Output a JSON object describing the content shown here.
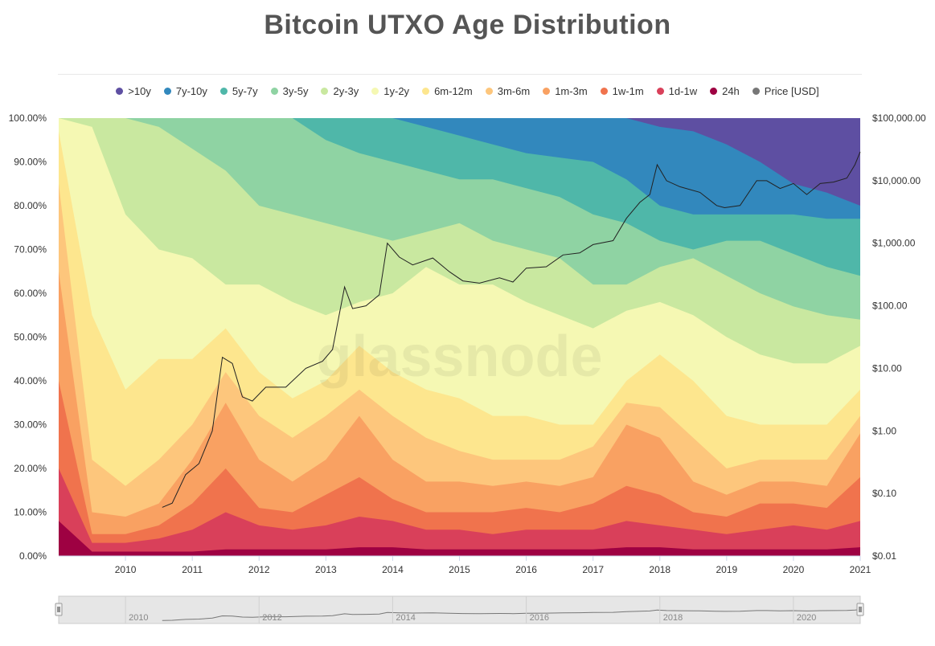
{
  "title": "Bitcoin UTXO Age Distribution",
  "watermark": "glassnode",
  "legend": [
    {
      "label": ">10y",
      "color": "#5e4fa2"
    },
    {
      "label": "7y-10y",
      "color": "#3288bd"
    },
    {
      "label": "5y-7y",
      "color": "#4fb7a9"
    },
    {
      "label": "3y-5y",
      "color": "#8fd3a3"
    },
    {
      "label": "2y-3y",
      "color": "#c9e8a0"
    },
    {
      "label": "1y-2y",
      "color": "#f5f8b3"
    },
    {
      "label": "6m-12m",
      "color": "#fde68e"
    },
    {
      "label": "3m-6m",
      "color": "#fdc67c"
    },
    {
      "label": "1m-3m",
      "color": "#f9a162"
    },
    {
      "label": "1w-1m",
      "color": "#f0734d"
    },
    {
      "label": "1d-1w",
      "color": "#d9405a"
    },
    {
      "label": "24h",
      "color": "#9e0142"
    },
    {
      "label": "Price [USD]",
      "color": "#777777"
    }
  ],
  "chart_data": {
    "type": "area",
    "stacking": "percent",
    "x": [
      2009.0,
      2009.5,
      2010.0,
      2010.5,
      2011.0,
      2011.5,
      2012.0,
      2012.5,
      2013.0,
      2013.5,
      2014.0,
      2014.5,
      2015.0,
      2015.5,
      2016.0,
      2016.5,
      2017.0,
      2017.5,
      2018.0,
      2018.5,
      2019.0,
      2019.5,
      2020.0,
      2020.5,
      2021.0
    ],
    "xlim": [
      2009.0,
      2021.0
    ],
    "x_tick_labels": [
      "2010",
      "2011",
      "2012",
      "2013",
      "2014",
      "2015",
      "2016",
      "2017",
      "2018",
      "2019",
      "2020",
      "2021"
    ],
    "y_tick_labels": [
      "0.00%",
      "10.00%",
      "20.00%",
      "30.00%",
      "40.00%",
      "50.00%",
      "60.00%",
      "70.00%",
      "80.00%",
      "90.00%",
      "100.00%"
    ],
    "ylim": [
      0,
      100
    ],
    "y2_tick_labels": [
      "$0.01",
      "$0.10",
      "$1.00",
      "$10.00",
      "$100.00",
      "$1,000.00",
      "$10,000.00",
      "$100,000.00"
    ],
    "y2_scale": "log",
    "y2lim": [
      0.01,
      100000
    ],
    "cumulative_upper_bounds": [
      {
        "name": "24h",
        "values": [
          8,
          1,
          1,
          1,
          1,
          1.5,
          1.5,
          1.5,
          1.5,
          2,
          2,
          1.5,
          1.5,
          1.5,
          1.5,
          1.5,
          1.5,
          2,
          2,
          1.5,
          1.5,
          1.5,
          1.5,
          1.5,
          2
        ]
      },
      {
        "name": "1d-1w",
        "values": [
          20,
          3,
          3,
          4,
          6,
          10,
          7,
          6,
          7,
          9,
          8,
          6,
          6,
          5,
          6,
          6,
          6,
          8,
          7,
          6,
          5,
          6,
          7,
          6,
          8
        ]
      },
      {
        "name": "1w-1m",
        "values": [
          40,
          5,
          5,
          7,
          12,
          20,
          11,
          10,
          14,
          18,
          13,
          10,
          10,
          10,
          11,
          10,
          12,
          16,
          14,
          10,
          9,
          12,
          12,
          11,
          18
        ]
      },
      {
        "name": "1m-3m",
        "values": [
          65,
          10,
          9,
          12,
          22,
          35,
          22,
          17,
          22,
          32,
          22,
          17,
          17,
          16,
          17,
          16,
          18,
          30,
          27,
          17,
          14,
          17,
          17,
          16,
          28
        ]
      },
      {
        "name": "3m-6m",
        "values": [
          85,
          22,
          16,
          22,
          30,
          42,
          32,
          27,
          32,
          38,
          32,
          27,
          24,
          22,
          22,
          22,
          25,
          35,
          34,
          27,
          20,
          22,
          22,
          22,
          32
        ]
      },
      {
        "name": "6m-12m",
        "values": [
          97,
          55,
          38,
          45,
          45,
          52,
          42,
          36,
          40,
          48,
          42,
          38,
          36,
          32,
          32,
          30,
          30,
          40,
          46,
          40,
          32,
          30,
          30,
          30,
          38
        ]
      },
      {
        "name": "1y-2y",
        "values": [
          100,
          98,
          78,
          70,
          68,
          62,
          62,
          58,
          55,
          58,
          60,
          66,
          62,
          62,
          58,
          55,
          52,
          56,
          58,
          55,
          50,
          46,
          44,
          44,
          48
        ]
      },
      {
        "name": "2y-3y",
        "values": [
          100,
          100,
          100,
          98,
          93,
          88,
          80,
          78,
          76,
          74,
          72,
          74,
          76,
          72,
          70,
          68,
          62,
          62,
          66,
          68,
          64,
          60,
          57,
          55,
          54
        ]
      },
      {
        "name": "3y-5y",
        "values": [
          100,
          100,
          100,
          100,
          100,
          100,
          100,
          100,
          95,
          92,
          90,
          88,
          86,
          86,
          84,
          82,
          78,
          76,
          72,
          70,
          72,
          72,
          69,
          66,
          64
        ]
      },
      {
        "name": "5y-7y",
        "values": [
          100,
          100,
          100,
          100,
          100,
          100,
          100,
          100,
          100,
          100,
          100,
          98,
          96,
          94,
          92,
          91,
          90,
          86,
          80,
          78,
          78,
          78,
          78,
          77,
          77
        ]
      },
      {
        "name": "7y-10y",
        "values": [
          100,
          100,
          100,
          100,
          100,
          100,
          100,
          100,
          100,
          100,
          100,
          100,
          100,
          100,
          100,
          100,
          100,
          100,
          98,
          97,
          94,
          90,
          85,
          83,
          80
        ]
      },
      {
        "name": ">10y",
        "values": [
          100,
          100,
          100,
          100,
          100,
          100,
          100,
          100,
          100,
          100,
          100,
          100,
          100,
          100,
          100,
          100,
          100,
          100,
          100,
          100,
          100,
          100,
          100,
          100,
          100
        ]
      }
    ],
    "price_series": {
      "name": "Price [USD]",
      "x": [
        2010.55,
        2010.7,
        2010.9,
        2011.1,
        2011.3,
        2011.45,
        2011.6,
        2011.75,
        2011.9,
        2012.1,
        2012.4,
        2012.7,
        2012.95,
        2013.1,
        2013.28,
        2013.4,
        2013.6,
        2013.8,
        2013.92,
        2014.1,
        2014.3,
        2014.6,
        2014.85,
        2015.05,
        2015.3,
        2015.6,
        2015.8,
        2016.0,
        2016.3,
        2016.55,
        2016.8,
        2017.0,
        2017.3,
        2017.5,
        2017.7,
        2017.85,
        2017.96,
        2018.1,
        2018.3,
        2018.6,
        2018.85,
        2018.97,
        2019.2,
        2019.45,
        2019.6,
        2019.8,
        2020.0,
        2020.2,
        2020.4,
        2020.6,
        2020.8,
        2020.92,
        2021.0
      ],
      "values": [
        0.06,
        0.07,
        0.2,
        0.3,
        1.0,
        15,
        12,
        3.5,
        3.0,
        5,
        5,
        10,
        13,
        20,
        200,
        90,
        100,
        150,
        1000,
        600,
        450,
        580,
        350,
        250,
        230,
        280,
        240,
        400,
        420,
        650,
        700,
        950,
        1100,
        2500,
        4500,
        6000,
        18000,
        10000,
        8000,
        6500,
        4000,
        3700,
        4000,
        10000,
        10000,
        7500,
        9000,
        6000,
        9000,
        9500,
        11000,
        18000,
        29000
      ]
    }
  },
  "navigator": {
    "tick_labels": [
      "2010",
      "2012",
      "2014",
      "2016",
      "2018",
      "2020"
    ]
  }
}
